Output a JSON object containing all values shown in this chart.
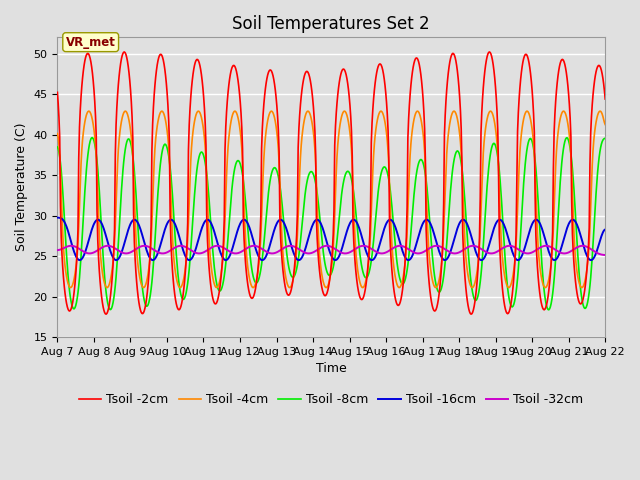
{
  "title": "Soil Temperatures Set 2",
  "xlabel": "Time",
  "ylabel": "Soil Temperature (C)",
  "ylim": [
    15,
    52
  ],
  "x_tick_labels": [
    "Aug 7",
    "Aug 8",
    "Aug 9",
    "Aug 10",
    "Aug 11",
    "Aug 12",
    "Aug 13",
    "Aug 14",
    "Aug 15",
    "Aug 16",
    "Aug 17",
    "Aug 18",
    "Aug 19",
    "Aug 20",
    "Aug 21",
    "Aug 22"
  ],
  "colors": {
    "Tsoil -2cm": "#ff0000",
    "Tsoil -4cm": "#ff8800",
    "Tsoil -8cm": "#00ee00",
    "Tsoil -16cm": "#0000dd",
    "Tsoil -32cm": "#cc00cc"
  },
  "annotation_text": "VR_met",
  "background_color": "#e0e0e0",
  "grid_color": "#ffffff",
  "title_fontsize": 12,
  "label_fontsize": 9,
  "tick_fontsize": 8,
  "legend_fontsize": 9,
  "yticks": [
    15,
    20,
    25,
    30,
    35,
    40,
    45,
    50
  ]
}
